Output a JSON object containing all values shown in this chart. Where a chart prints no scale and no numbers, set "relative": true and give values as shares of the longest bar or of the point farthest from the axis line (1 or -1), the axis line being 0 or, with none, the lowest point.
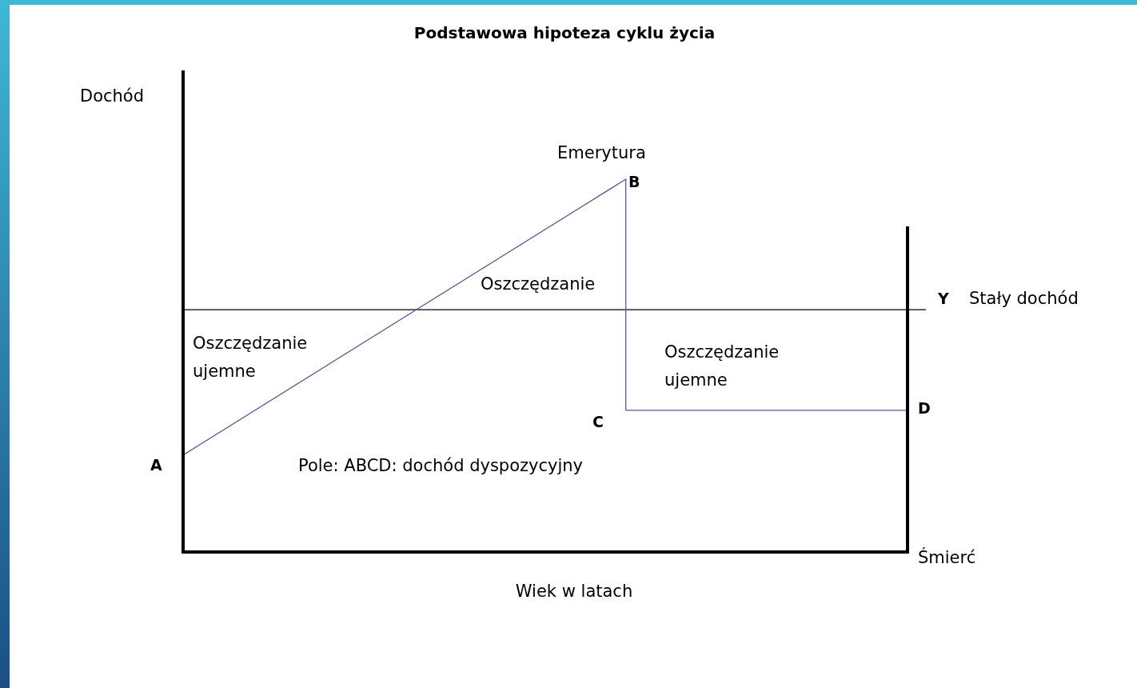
{
  "chart_data": {
    "type": "line",
    "title": "Podstawowa hipoteza cyklu życia",
    "xlabel": "Wiek w latach",
    "ylabel": "Dochód",
    "relative": true,
    "categories": [
      null,
      null,
      null,
      null,
      null,
      null,
      null,
      null,
      null,
      null,
      null,
      null,
      null,
      null,
      null,
      null,
      null,
      null,
      null
    ],
    "series": [
      {
        "type": "line",
        "color": "#5a5a9a",
        "values": [
          0.26,
          null,
          null,
          null,
          null,
          null,
          null,
          null,
          null,
          null,
          null,
          1,
          null,
          null,
          null,
          null,
          null,
          null,
          null
        ]
      },
      {
        "type": "step",
        "color": "#5a5a9a",
        "values": [
          null,
          null,
          null,
          null,
          null,
          null,
          null,
          null,
          null,
          null,
          null,
          1,
          null,
          null,
          null,
          null,
          null,
          null,
          0.38
        ]
      }
    ],
    "ref_lines": [
      {
        "axis": "y",
        "value": 0.65,
        "label": "Y",
        "color": "#000000"
      }
    ],
    "annotations": [
      "Emerytura",
      "A",
      "B",
      "C",
      "D",
      "Oszczędzanie",
      "Oszczędzanie\nujemne",
      "Oszczędzanie\nujemne",
      "Pole: ABCD: dochód dyspozycyjny",
      "Stały dochód",
      "Śmierć"
    ]
  }
}
